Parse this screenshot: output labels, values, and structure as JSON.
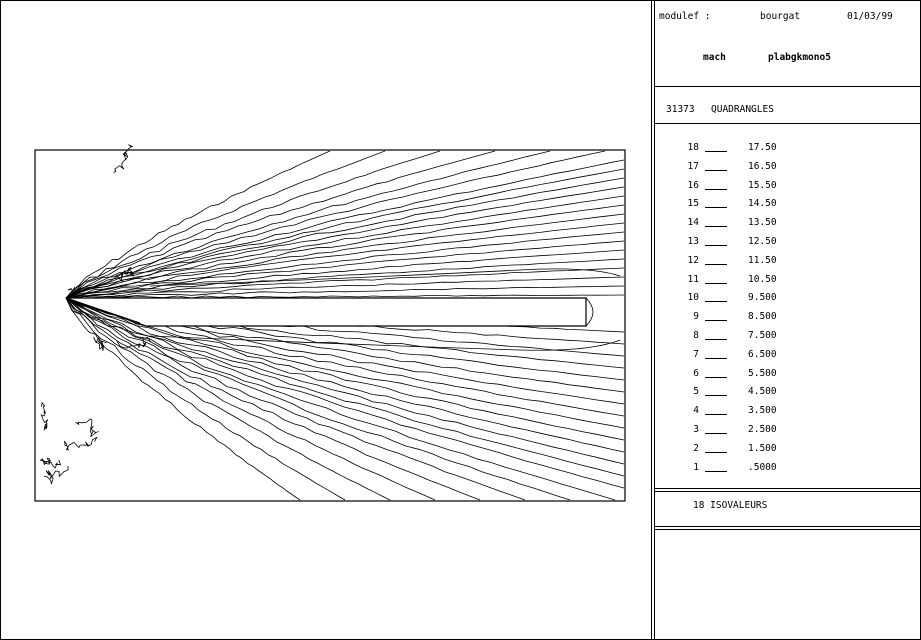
{
  "header": {
    "software": "modulef :",
    "user": "bourgat",
    "date": "01/03/99",
    "field_name": "mach",
    "case_name": "plabgkmono5"
  },
  "mesh": {
    "count": "31373",
    "element_type": "QUADRANGLES"
  },
  "legend": {
    "levels": [
      {
        "index": "18",
        "value": "17.50"
      },
      {
        "index": "17",
        "value": "16.50"
      },
      {
        "index": "16",
        "value": "15.50"
      },
      {
        "index": "15",
        "value": "14.50"
      },
      {
        "index": "14",
        "value": "13.50"
      },
      {
        "index": "13",
        "value": "12.50"
      },
      {
        "index": "12",
        "value": "11.50"
      },
      {
        "index": "11",
        "value": "10.50"
      },
      {
        "index": "10",
        "value": "9.500"
      },
      {
        "index": "9",
        "value": "8.500"
      },
      {
        "index": "8",
        "value": "7.500"
      },
      {
        "index": "7",
        "value": "6.500"
      },
      {
        "index": "6",
        "value": "5.500"
      },
      {
        "index": "5",
        "value": "4.500"
      },
      {
        "index": "4",
        "value": "3.500"
      },
      {
        "index": "3",
        "value": "2.500"
      },
      {
        "index": "2",
        "value": "1.500"
      },
      {
        "index": "1",
        "value": ".5000"
      }
    ],
    "summary": "18 ISOVALEURS"
  }
}
